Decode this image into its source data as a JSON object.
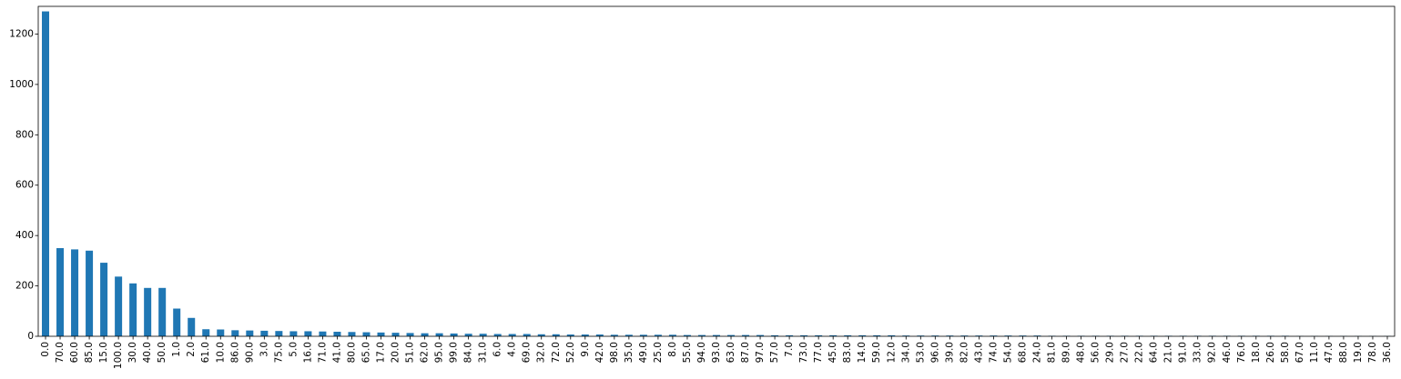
{
  "chart_data": {
    "type": "bar",
    "title": "",
    "xlabel": "",
    "ylabel": "",
    "ylim": [
      0,
      1310
    ],
    "yticks": [
      0,
      200,
      400,
      600,
      800,
      1000,
      1200
    ],
    "ytick_labels": [
      "0",
      "200",
      "400",
      "600",
      "800",
      "1000",
      "1200"
    ],
    "grid": false,
    "legend": "none",
    "bar_color": "#1f77b4",
    "categories": [
      "0.0",
      "70.0",
      "60.0",
      "85.0",
      "15.0",
      "100.0",
      "30.0",
      "40.0",
      "50.0",
      "1.0",
      "2.0",
      "61.0",
      "10.0",
      "86.0",
      "90.0",
      "3.0",
      "75.0",
      "5.0",
      "16.0",
      "71.0",
      "41.0",
      "80.0",
      "65.0",
      "17.0",
      "20.0",
      "51.0",
      "62.0",
      "95.0",
      "99.0",
      "84.0",
      "31.0",
      "6.0",
      "4.0",
      "69.0",
      "32.0",
      "72.0",
      "52.0",
      "9.0",
      "42.0",
      "98.0",
      "35.0",
      "49.0",
      "25.0",
      "8.0",
      "55.0",
      "94.0",
      "93.0",
      "63.0",
      "87.0",
      "97.0",
      "57.0",
      "7.0",
      "73.0",
      "77.0",
      "45.0",
      "83.0",
      "14.0",
      "59.0",
      "12.0",
      "34.0",
      "53.0",
      "96.0",
      "39.0",
      "82.0",
      "43.0",
      "74.0",
      "54.0",
      "68.0",
      "24.0",
      "81.0",
      "89.0",
      "48.0",
      "56.0",
      "29.0",
      "27.0",
      "22.0",
      "64.0",
      "21.0",
      "91.0",
      "33.0",
      "92.0",
      "46.0",
      "76.0",
      "18.0",
      "26.0",
      "58.0",
      "67.0",
      "11.0",
      "47.0",
      "88.0",
      "19.0",
      "78.0",
      "36.0"
    ],
    "values": [
      1290,
      350,
      345,
      340,
      292,
      237,
      210,
      192,
      192,
      110,
      73,
      28,
      27,
      24,
      23,
      22,
      21,
      20,
      20,
      19,
      18,
      17,
      16,
      15,
      14,
      13,
      12,
      12,
      11,
      10,
      10,
      9,
      9,
      9,
      8,
      8,
      7,
      7,
      7,
      6,
      6,
      6,
      6,
      6,
      5,
      5,
      5,
      5,
      5,
      5,
      4,
      4,
      4,
      4,
      4,
      4,
      4,
      4,
      4,
      3,
      3,
      3,
      3,
      3,
      3,
      3,
      3,
      3,
      3,
      2,
      2,
      2,
      2,
      2,
      2,
      2,
      2,
      2,
      2,
      2,
      2,
      2,
      2,
      2,
      2,
      2,
      1,
      1,
      1,
      1,
      1,
      1,
      1
    ]
  }
}
